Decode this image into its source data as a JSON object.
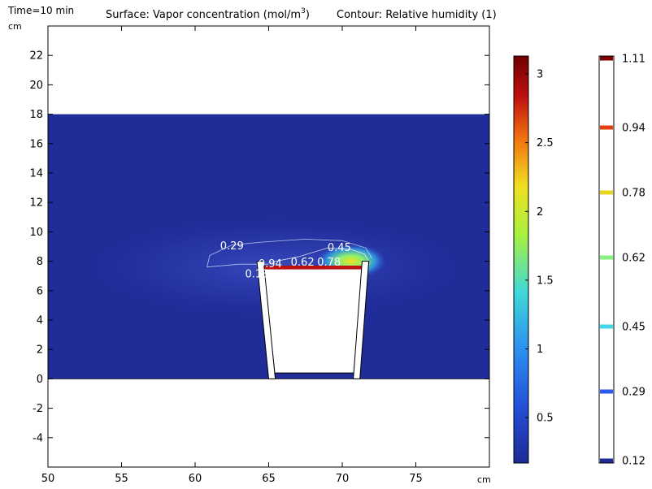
{
  "header": {
    "time_label": "Time=10 min",
    "surface_prefix": "Surface: Vapor concentration (mol/m",
    "surface_sup": "3",
    "surface_suffix": ")",
    "contour_label": "Contour: Relative humidity (1)"
  },
  "chart_data": {
    "type": "heatmap",
    "x_unit": "cm",
    "y_unit": "cm",
    "xlim": [
      50,
      80
    ],
    "ylim": [
      -6,
      24
    ],
    "x_ticks": [
      50,
      55,
      60,
      65,
      70,
      75
    ],
    "y_ticks": [
      -4,
      -2,
      0,
      2,
      4,
      6,
      8,
      10,
      12,
      14,
      16,
      18,
      20,
      22
    ],
    "domain": {
      "x": [
        50,
        80
      ],
      "y": [
        0,
        18
      ]
    },
    "cup": {
      "top_left": [
        64.2,
        8.0
      ],
      "top_right": [
        71.8,
        8.0
      ],
      "bottom_left": [
        65.0,
        0.0
      ],
      "bottom_right": [
        71.2,
        0.0
      ],
      "wall_thickness": 0.45,
      "base_line_y": 0.4
    },
    "surface_colorbar": {
      "min": 0.17,
      "max": 3.13,
      "ticks": [
        0.5,
        1,
        1.5,
        2,
        2.5,
        3
      ],
      "colors": [
        "#1e2a96",
        "#2450d8",
        "#34c8e0",
        "#8ef060",
        "#f0e020",
        "#f07010",
        "#c01010",
        "#780000"
      ]
    },
    "contour_colorbar": {
      "min": 0.12,
      "max": 1.11,
      "levels": [
        0.12,
        0.29,
        0.45,
        0.62,
        0.78,
        0.94,
        1.11
      ],
      "level_colors": [
        "#1e2a96",
        "#2a5af0",
        "#40d8e8",
        "#88f080",
        "#e8d420",
        "#e04010",
        "#800000"
      ]
    },
    "contour_labels": [
      {
        "text": "0.29",
        "x": 62.5,
        "y": 8.8
      },
      {
        "text": "0.45",
        "x": 69.8,
        "y": 8.7
      },
      {
        "text": "0.13",
        "x": 64.2,
        "y": 6.9
      },
      {
        "text": "0.94",
        "x": 65.1,
        "y": 7.6
      },
      {
        "text": "0.62",
        "x": 67.3,
        "y": 7.7
      },
      {
        "text": "0.78",
        "x": 69.1,
        "y": 7.7
      }
    ]
  }
}
